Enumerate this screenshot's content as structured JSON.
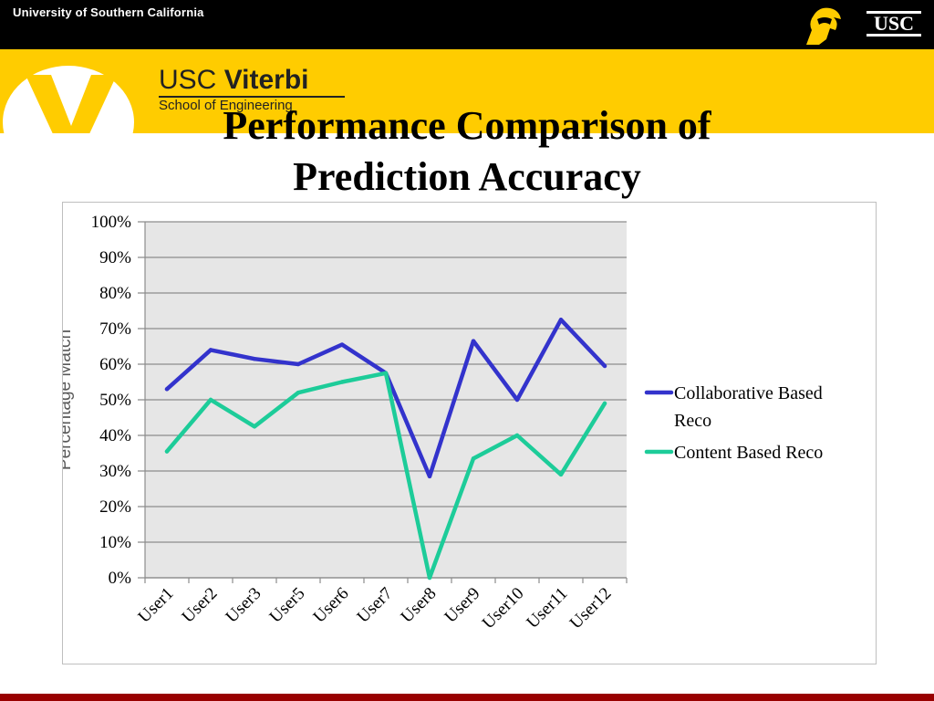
{
  "header": {
    "university": "University of Southern California",
    "usc_logo": "USC",
    "trojan_icon": "trojan-helmet-icon",
    "viterbi_usc": "USC",
    "viterbi_name": "Viterbi",
    "viterbi_school": "School of Engineering"
  },
  "colors": {
    "header_black": "#000000",
    "band_yellow": "#FFCC00",
    "cardinal": "#990000",
    "collaborative": "#3333CC",
    "content": "#1DCC99",
    "plot_bg": "#E6E6E6"
  },
  "slide": {
    "title_line1": "Performance Comparison of",
    "title_line2": "Prediction Accuracy"
  },
  "chart_data": {
    "type": "line",
    "title": "",
    "xlabel": "",
    "ylabel": "Percentage Match",
    "categories": [
      "User1",
      "User2",
      "User3",
      "User5",
      "User6",
      "User7",
      "User8",
      "User9",
      "User10",
      "User11",
      "User12"
    ],
    "yticks": [
      "0%",
      "10%",
      "20%",
      "30%",
      "40%",
      "50%",
      "60%",
      "70%",
      "80%",
      "90%",
      "100%"
    ],
    "ylim": [
      0,
      100
    ],
    "grid": true,
    "legend_position": "right",
    "series": [
      {
        "name": "Collaborative Based Reco",
        "legend_lines": [
          "Collaborative Based",
          "Reco"
        ],
        "color": "#3333CC",
        "values": [
          53,
          64,
          61.5,
          60,
          65.5,
          57.5,
          28.5,
          66.5,
          50,
          72.5,
          59.5
        ]
      },
      {
        "name": "Content Based Reco",
        "legend_lines": [
          "Content Based Reco"
        ],
        "color": "#1DCC99",
        "values": [
          35.5,
          50,
          42.5,
          52,
          55,
          57.5,
          0,
          33.5,
          40,
          29,
          49
        ]
      }
    ]
  }
}
